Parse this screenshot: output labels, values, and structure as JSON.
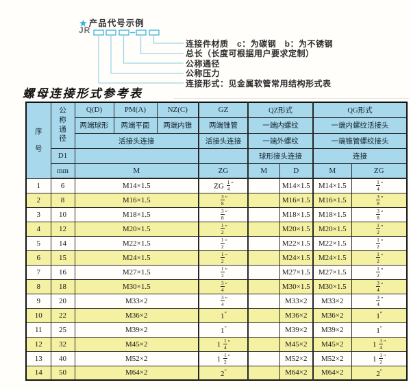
{
  "colors": {
    "accent": "#29b0d6",
    "header_bg": "#a8d8ec",
    "row_alt_bg": "#f5f1a3",
    "leader_line": "#9fd4e4",
    "box_stroke": "#49b8da"
  },
  "diagram": {
    "star": "★",
    "heading": "产品代号示例",
    "prefix": "JR",
    "labels": [
      "连接件材质　c：为碳钢　b：为不锈钢",
      "总长（长度可根据用户要求定制）",
      "公称通径",
      "公称压力",
      "连接形式：见金属软管常用结构形式表"
    ]
  },
  "title": "螺母连接形式参考表",
  "table": {
    "header": {
      "seq": "序号",
      "dn": "公称通径",
      "d1": "D1",
      "unit": "mm",
      "q": "Q(D)",
      "pm": "PM(A)",
      "nz": "NZ(C)",
      "gz": "GZ",
      "qz": "QZ形式",
      "qg": "QG形式",
      "q_desc": "两端球形",
      "pm_desc": "两端平面",
      "nz_desc": "两端内锥",
      "gz_desc": "两端锥管",
      "qz_desc1": "一端内螺纹",
      "qg_desc1": "一端内螺纹活接头",
      "union_conn": "活接头连接",
      "gz_conn": "活接头连接",
      "qz_desc2": "一端外螺纹",
      "qg_desc2": "一端锥管螺纹接头",
      "qz_conn": "球形接头连接",
      "qg_conn": "连接",
      "m1": "M",
      "zg1": "ZG",
      "m2": "M",
      "d": "D",
      "m3": "M",
      "zg2": "ZG"
    },
    "rows": [
      [
        "1",
        "6",
        "M14×1.5",
        "ZG 1/4\"",
        "",
        "M14×1.5",
        "M14×1.5",
        "1/4\""
      ],
      [
        "2",
        "8",
        "M16×1.5",
        "3/8\"",
        "",
        "M16×1.5",
        "M16×1.5",
        "3/8\""
      ],
      [
        "3",
        "10",
        "M18×1.5",
        "3/8\"",
        "",
        "M18×1.5",
        "M18×1.5",
        "3/8\""
      ],
      [
        "4",
        "12",
        "M20×1.5",
        "1/2\"",
        "",
        "M20×1.5",
        "M20×1.5",
        "1/2\""
      ],
      [
        "5",
        "14",
        "M22×1.5",
        "1/2\"",
        "",
        "M22×1.5",
        "M22×1.5",
        "1/2\""
      ],
      [
        "6",
        "15",
        "M24×1.5",
        "1/2\"",
        "",
        "M24×1.5",
        "M24×1.5",
        "1/2\""
      ],
      [
        "7",
        "16",
        "M27×1.5",
        "1/2\"",
        "",
        "M27×1.5",
        "M27×1.5",
        "1/2\""
      ],
      [
        "8",
        "18",
        "M30×1.5",
        "3/4\"",
        "",
        "M30×1.5",
        "M30×1.5",
        "3/4\""
      ],
      [
        "9",
        "20",
        "M33×2",
        "3/4\"",
        "",
        "M33×2",
        "M33×2",
        "3/4\""
      ],
      [
        "10",
        "22",
        "M36×2",
        "1\"",
        "",
        "M36×2",
        "M36×2",
        "1\""
      ],
      [
        "11",
        "25",
        "M39×2",
        "1\"",
        "",
        "M39×2",
        "M39×2",
        "1\""
      ],
      [
        "12",
        "32",
        "M45×2",
        "1 1/4\"",
        "",
        "M45×2",
        "M45×2",
        "1 1/4\""
      ],
      [
        "13",
        "40",
        "M52×2",
        "1 1/2\"",
        "",
        "M52×2",
        "M52×2",
        "1 1/2\""
      ],
      [
        "14",
        "50",
        "M64×2",
        "2\"",
        "",
        "M64×2",
        "M64×2",
        "2\""
      ]
    ]
  }
}
